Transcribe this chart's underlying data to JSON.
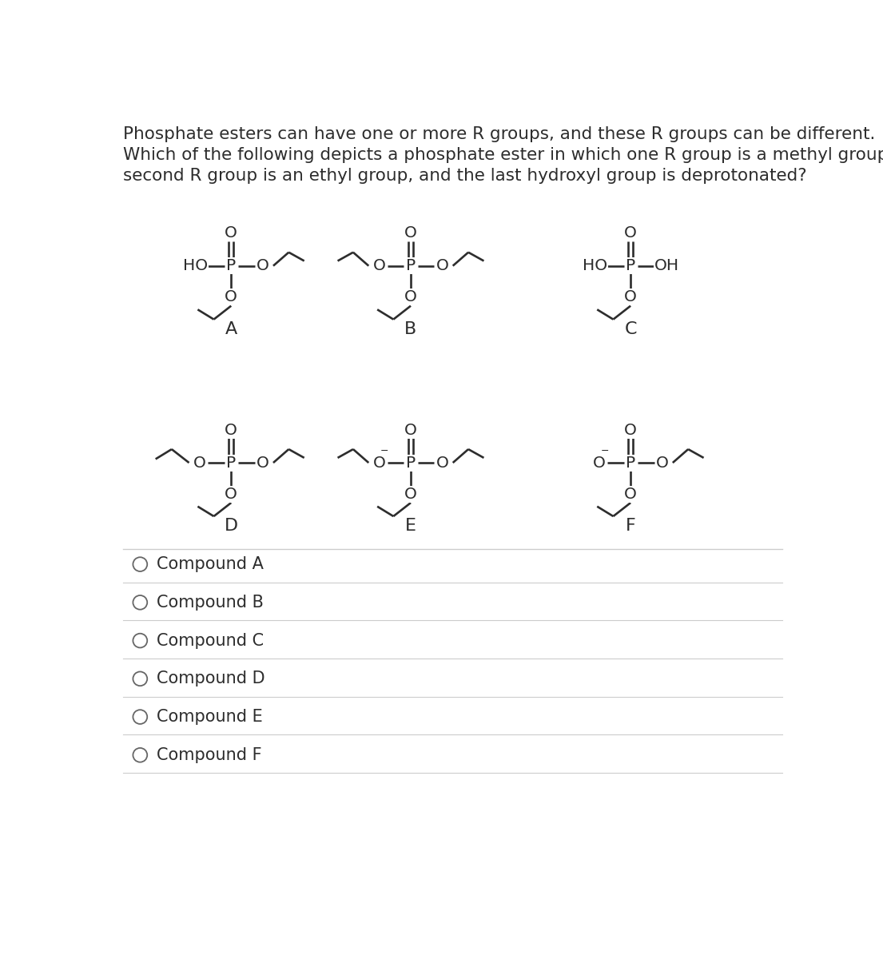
{
  "title_lines": [
    "Phosphate esters can have one or more R groups, and these R groups can be different.",
    "Which of the following depicts a phosphate ester in which one R group is a methyl group, a",
    "second R group is an ethyl group, and the last hydroxyl group is deprotonated?"
  ],
  "answer_options": [
    "Compound A",
    "Compound B",
    "Compound C",
    "Compound D",
    "Compound E",
    "Compound F"
  ],
  "bg_color": "#ffffff",
  "text_color": "#2d2d2d",
  "line_color": "#2d2d2d",
  "font_size_title": 15.5,
  "font_size_label": 16,
  "font_size_answer": 15,
  "font_size_atom": 14.5,
  "lw": 1.9
}
